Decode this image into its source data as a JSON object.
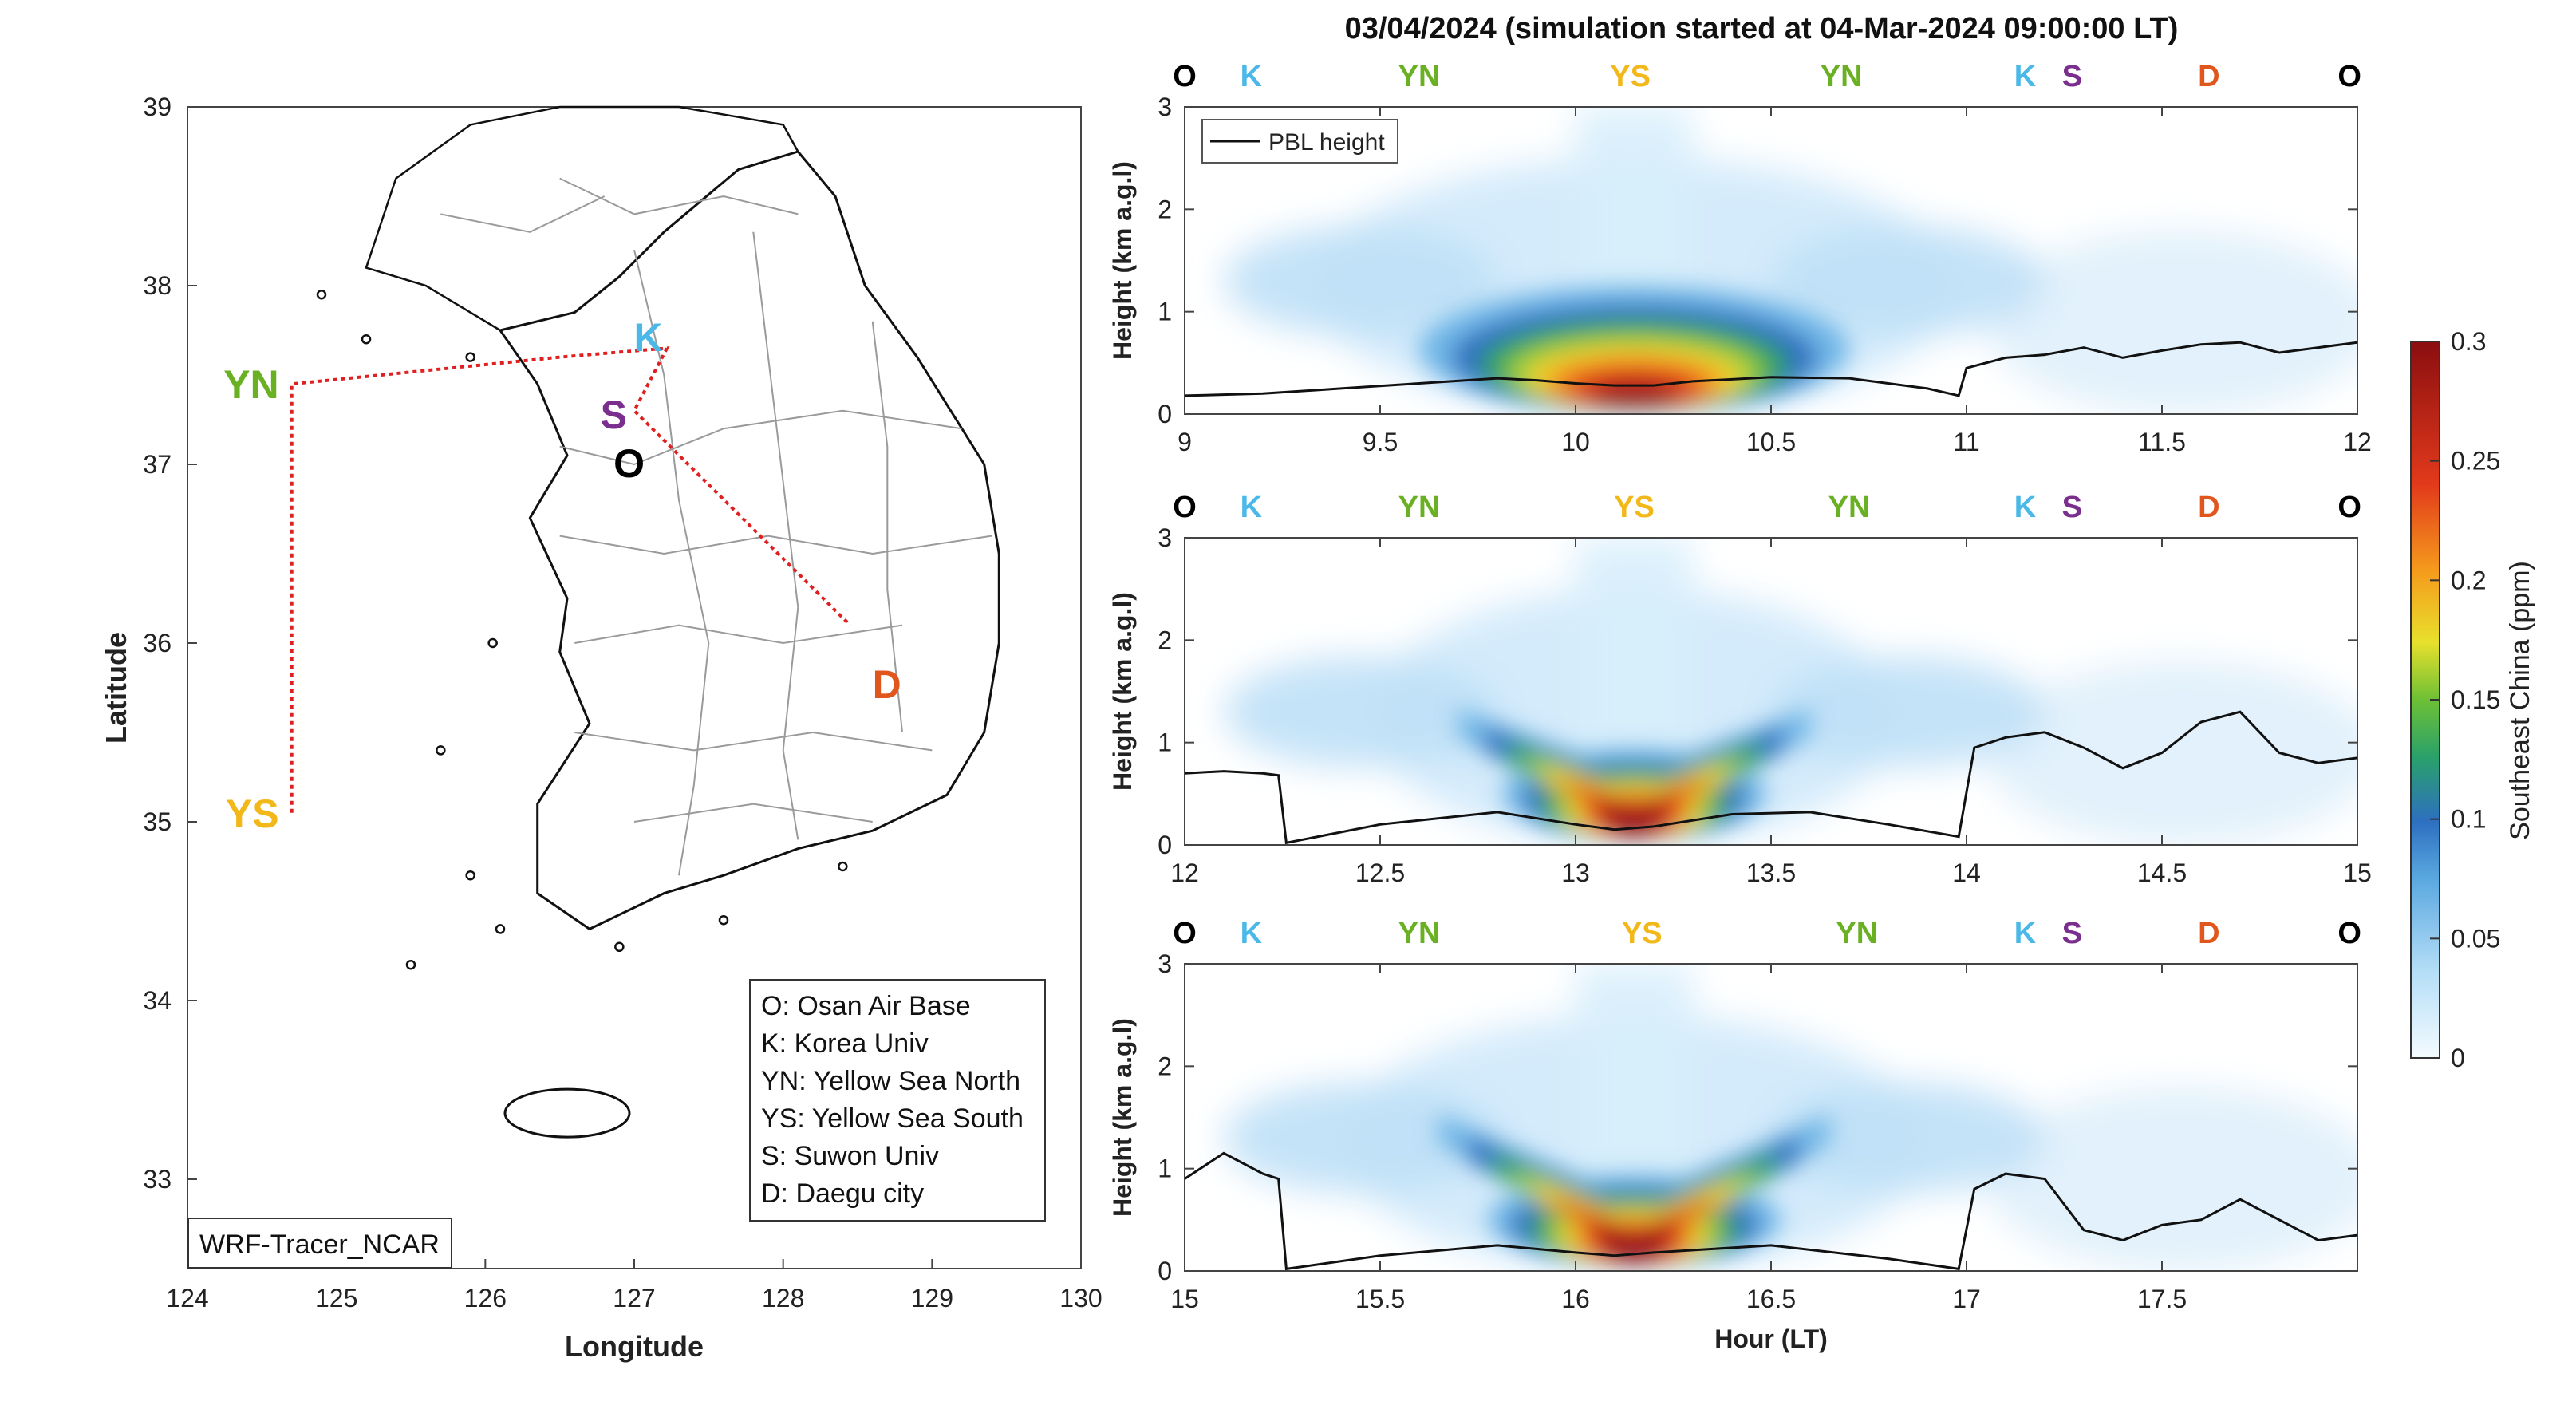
{
  "title": "03/04/2024 (simulation started at 04-Mar-2024 09:00:00 LT)",
  "colors": {
    "O": "#000000",
    "K": "#4cb8e8",
    "YN": "#6ab023",
    "YS": "#f2b81a",
    "S": "#7a2f8e",
    "D": "#e0561c",
    "route": "#e02020"
  },
  "map": {
    "xlabel": "Longitude",
    "ylabel": "Latitude",
    "xlim": [
      124,
      130
    ],
    "ylim": [
      32.5,
      39
    ],
    "xticks": [
      "124",
      "125",
      "126",
      "127",
      "128",
      "129",
      "130"
    ],
    "yticks": [
      "33",
      "34",
      "35",
      "36",
      "37",
      "38",
      "39"
    ],
    "sites": [
      {
        "code": "O",
        "lon": 127.03,
        "lat": 37.08
      },
      {
        "code": "K",
        "lon": 127.03,
        "lat": 37.59
      },
      {
        "code": "S",
        "lon": 126.98,
        "lat": 37.29
      },
      {
        "code": "D",
        "lon": 128.6,
        "lat": 35.87
      },
      {
        "code": "YN",
        "lon": 124.7,
        "lat": 37.45
      },
      {
        "code": "YS",
        "lon": 124.7,
        "lat": 35.05
      }
    ],
    "route_lonlat": [
      [
        124.7,
        35.05
      ],
      [
        124.7,
        37.45
      ],
      [
        126.5,
        37.6
      ],
      [
        127.22,
        37.65
      ],
      [
        127.0,
        37.3
      ],
      [
        128.45,
        36.1
      ]
    ],
    "legend": [
      "O: Osan Air Base",
      "K: Korea Univ",
      "YN: Yellow Sea North",
      "YS: Yellow Sea South",
      "S: Suwon Univ",
      "D: Daegu city"
    ],
    "model_label": "WRF-Tracer_NCAR"
  },
  "panels": {
    "ylabel": "Height (km a.g.l)",
    "xlabel": "Hour (LT)",
    "pbl_legend": "PBL height",
    "top_markers": [
      "O",
      "K",
      "YN",
      "YS",
      "YN",
      "K",
      "S",
      "D",
      "O"
    ],
    "yticks": [
      "0",
      "1",
      "2",
      "3"
    ],
    "xticks": [
      [
        "9",
        "9.5",
        "10",
        "10.5",
        "11",
        "11.5",
        "12"
      ],
      [
        "12",
        "12.5",
        "13",
        "13.5",
        "14",
        "14.5",
        "15"
      ],
      [
        "15",
        "15.5",
        "16",
        "16.5",
        "17",
        "17.5"
      ]
    ]
  },
  "colorbar": {
    "label": "Southeast China (ppm)",
    "ticks": [
      "0",
      "0.05",
      "0.1",
      "0.15",
      "0.2",
      "0.25",
      "0.3"
    ]
  },
  "chart_data": [
    {
      "type": "heatmap",
      "title": "03/04/2024 (simulation started at 04-Mar-2024 09:00:00 LT)",
      "xlabel": "",
      "ylabel": "Height (km a.g.l)",
      "xlim": [
        9,
        12
      ],
      "ylim": [
        0,
        3
      ],
      "markers_x": [
        9.0,
        9.17,
        9.6,
        10.14,
        10.68,
        11.15,
        11.27,
        11.62,
        11.98
      ],
      "series": [
        {
          "name": "PBL height",
          "x": [
            9.0,
            9.2,
            9.4,
            9.6,
            9.8,
            9.9,
            10.0,
            10.1,
            10.2,
            10.3,
            10.5,
            10.7,
            10.9,
            10.98,
            11.0,
            11.1,
            11.2,
            11.3,
            11.4,
            11.5,
            11.6,
            11.7,
            11.8,
            11.9,
            12.0
          ],
          "y": [
            0.18,
            0.2,
            0.25,
            0.3,
            0.35,
            0.33,
            0.3,
            0.28,
            0.28,
            0.32,
            0.36,
            0.35,
            0.25,
            0.18,
            0.45,
            0.55,
            0.58,
            0.65,
            0.55,
            0.62,
            0.68,
            0.7,
            0.6,
            0.65,
            0.7
          ]
        }
      ],
      "plume": {
        "peak": 0.3,
        "center": 10.15,
        "half_width": 0.55,
        "depth_km": 1.0
      }
    },
    {
      "type": "heatmap",
      "xlabel": "",
      "ylabel": "Height (km a.g.l)",
      "xlim": [
        12,
        15
      ],
      "ylim": [
        0,
        3
      ],
      "markers_x": [
        12.0,
        12.17,
        12.6,
        13.15,
        13.7,
        14.15,
        14.27,
        14.62,
        14.98
      ],
      "series": [
        {
          "name": "PBL height",
          "x": [
            12.0,
            12.1,
            12.2,
            12.24,
            12.26,
            12.5,
            12.8,
            13.0,
            13.1,
            13.2,
            13.4,
            13.6,
            13.8,
            13.98,
            14.02,
            14.1,
            14.2,
            14.3,
            14.4,
            14.5,
            14.6,
            14.7,
            14.8,
            14.9,
            15.0
          ],
          "y": [
            0.7,
            0.72,
            0.7,
            0.68,
            0.02,
            0.2,
            0.32,
            0.2,
            0.15,
            0.18,
            0.3,
            0.32,
            0.2,
            0.08,
            0.95,
            1.05,
            1.1,
            0.95,
            0.75,
            0.9,
            1.2,
            1.3,
            0.9,
            0.8,
            0.85
          ]
        }
      ],
      "plume": {
        "peak": 0.3,
        "center": 13.15,
        "half_width": 0.45,
        "depth_km": 0.9,
        "v_shape": true
      }
    },
    {
      "type": "heatmap",
      "xlabel": "Hour (LT)",
      "ylabel": "Height (km a.g.l)",
      "xlim": [
        15,
        18
      ],
      "ylim": [
        0,
        3
      ],
      "markers_x": [
        15.0,
        15.17,
        15.6,
        16.17,
        16.72,
        17.15,
        17.27,
        17.62,
        17.98
      ],
      "series": [
        {
          "name": "PBL height",
          "x": [
            15.0,
            15.1,
            15.2,
            15.24,
            15.26,
            15.5,
            15.8,
            16.0,
            16.1,
            16.2,
            16.5,
            16.8,
            16.98,
            17.02,
            17.1,
            17.2,
            17.3,
            17.4,
            17.5,
            17.6,
            17.7,
            17.8,
            17.9,
            18.0
          ],
          "y": [
            0.9,
            1.15,
            0.95,
            0.9,
            0.02,
            0.15,
            0.25,
            0.18,
            0.15,
            0.18,
            0.25,
            0.12,
            0.02,
            0.8,
            0.95,
            0.9,
            0.4,
            0.3,
            0.45,
            0.5,
            0.7,
            0.5,
            0.3,
            0.35
          ]
        }
      ],
      "plume": {
        "peak": 0.3,
        "center": 16.15,
        "half_width": 0.5,
        "depth_km": 1.1,
        "v_shape": true
      }
    }
  ]
}
